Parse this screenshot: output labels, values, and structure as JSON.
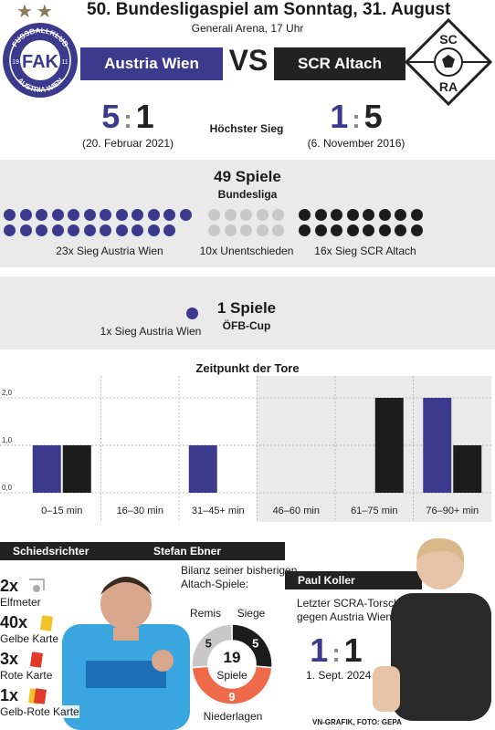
{
  "header": {
    "title": "50. Bundesligaspiel am Sonntag, 31. August",
    "subtitle": "Generali Arena, 17 Uhr",
    "vs": "VS",
    "home_team": "Austria Wien",
    "away_team": "SCR Altach",
    "home_logo_text_top": "FUSSBALLKLUB",
    "home_logo_text_bottom": "AUSTRIA WIEN",
    "home_logo_initials": "FAK",
    "home_logo_year_left": "19",
    "home_logo_year_right": "11",
    "away_logo_top": "SC",
    "away_logo_bottom": "RA"
  },
  "highest_win": {
    "label": "Höchster Sieg",
    "home": {
      "left": "5",
      "sep": ":",
      "right": "1",
      "date": "(20. Februar 2021)"
    },
    "away": {
      "left": "1",
      "sep": ":",
      "right": "5",
      "date": "(6. November 2016)"
    }
  },
  "bundesliga": {
    "title": "49 Spiele",
    "subtitle": "Bundesliga",
    "home_wins": 23,
    "draws": 10,
    "away_wins": 16,
    "home_label": "23x Sieg Austria Wien",
    "draw_label": "10x Unentschieden",
    "away_label": "16x Sieg SCR Altach"
  },
  "cup": {
    "title": "1 Spiele",
    "subtitle": "ÖFB-Cup",
    "home_wins": 1,
    "home_label": "1x Sieg Austria Wien"
  },
  "chart_data": {
    "type": "bar",
    "title": "Zeitpunkt der Tore",
    "categories": [
      "0–15 min",
      "16–30 min",
      "31–45+ min",
      "46–60 min",
      "61–75 min",
      "76–90+ min"
    ],
    "series": [
      {
        "values": [
          1,
          0,
          1,
          0,
          0,
          2
        ],
        "color": "#3b3a8c"
      },
      {
        "values": [
          1,
          0,
          0,
          0,
          2,
          1
        ],
        "color": "#1c1c1c"
      }
    ],
    "ylim": [
      0,
      2
    ],
    "yticks": [
      "0,0",
      "1,0",
      "2,0"
    ],
    "grid": true
  },
  "referee": {
    "header_left": "Schiedsrichter",
    "header_name": "Stefan Ebner",
    "stats": [
      {
        "count": "2x",
        "label": "Elfmeter",
        "icon": "penalty-spot-icon"
      },
      {
        "count": "40x",
        "label": "Gelbe Karte",
        "icon": "yellow-card-icon"
      },
      {
        "count": "3x",
        "label": "Rote Karte",
        "icon": "red-card-icon"
      },
      {
        "count": "1x",
        "label": "Gelb-Rote Karte",
        "icon": "yellow-red-card-icon"
      }
    ],
    "bilanz_label": "Bilanz seiner bisherigen Altach-Spiele:",
    "donut": {
      "total": "19",
      "total_label": "Spiele",
      "remis": 5,
      "siege": 5,
      "niederlagen": 9,
      "remis_label": "Remis",
      "siege_label": "Siege",
      "niederlagen_label": "Niederlagen",
      "remis_value": "5",
      "siege_value": "5",
      "niederlagen_value": "9",
      "colors": {
        "remis": "#c8c8c8",
        "siege": "#1c1c1c",
        "niederlagen": "#ef6a4a"
      }
    }
  },
  "scorer": {
    "name": "Paul Koller",
    "label": "Letzter SCRA-Torschütze gegen Austria Wien",
    "score_left": "1",
    "score_sep": ":",
    "score_right": "1",
    "date": "1. Sept. 2024"
  },
  "credit": "VN-GRAFIK, FOTO: GEPA",
  "colors": {
    "austria": "#3b3a8c",
    "altach": "#1c1c1c",
    "draw": "#c8c8c8",
    "accent_red": "#ef6a4a"
  }
}
